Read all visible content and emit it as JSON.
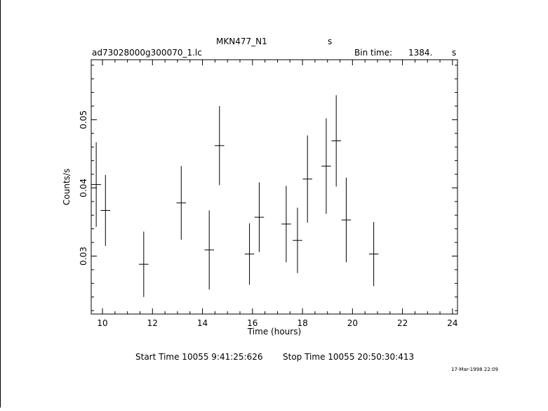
{
  "header": {
    "target": "MKN477_N1",
    "target_suffix": "s",
    "filename": "ad73028000g300070_1.lc",
    "bin_time_label": "Bin time:",
    "bin_time_value": "1384.",
    "bin_time_unit": "s"
  },
  "footer": {
    "start_time": "Start Time 10055  9:41:25:626",
    "stop_time": "Stop Time 10055 20:50:30:413",
    "timestamp": "17-Mar-1998 22:09"
  },
  "chart_data": {
    "type": "scatter",
    "title": "MKN477_N1",
    "xlabel": "Time (hours)",
    "ylabel": "Counts/s",
    "xlim": [
      9.55,
      24.2
    ],
    "ylim": [
      0.0215,
      0.0588
    ],
    "x_ticks": [
      10,
      12,
      14,
      16,
      18,
      20,
      22,
      24
    ],
    "x_tick_labels": [
      "10",
      "12",
      "14",
      "16",
      "18",
      "20",
      "22",
      "24"
    ],
    "y_ticks": [
      0.03,
      0.04,
      0.05
    ],
    "y_tick_labels": [
      "0.03",
      "0.04",
      "0.05"
    ],
    "grid": false,
    "legend": "none",
    "series": [
      {
        "x": [
          9.75,
          10.12,
          11.65,
          13.15,
          14.27,
          14.68,
          15.88,
          16.27,
          17.35,
          17.8,
          18.2,
          18.95,
          19.35,
          19.75,
          20.85
        ],
        "y": [
          0.0405,
          0.0367,
          0.0288,
          0.0378,
          0.0309,
          0.0462,
          0.0303,
          0.0357,
          0.0347,
          0.0323,
          0.0413,
          0.0432,
          0.0469,
          0.0353,
          0.0303
        ],
        "x_err": [
          0.19,
          0.19,
          0.19,
          0.19,
          0.19,
          0.19,
          0.19,
          0.19,
          0.19,
          0.19,
          0.19,
          0.19,
          0.19,
          0.19,
          0.19
        ],
        "y_err": [
          0.0062,
          0.0052,
          0.0048,
          0.0054,
          0.0058,
          0.0058,
          0.0045,
          0.0051,
          0.0056,
          0.0048,
          0.0064,
          0.007,
          0.0067,
          0.0062,
          0.0047
        ]
      }
    ]
  }
}
